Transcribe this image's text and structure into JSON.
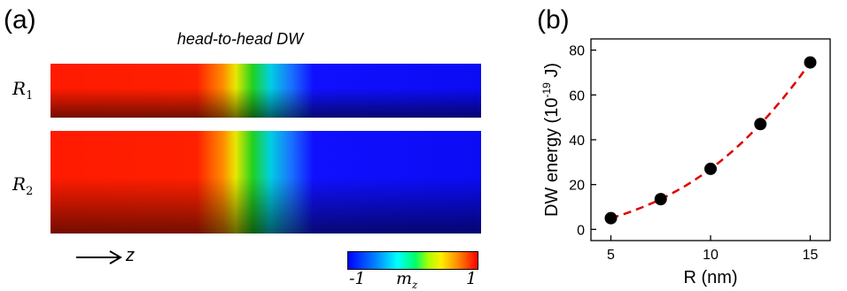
{
  "panel_a": {
    "label": "(a)",
    "title": "head-to-head DW",
    "wires": [
      {
        "label_main": "R",
        "label_sub": "1"
      },
      {
        "label_main": "R",
        "label_sub": "2"
      }
    ],
    "axis_label": "z",
    "colorbar": {
      "min": "-1",
      "max": "1",
      "label_main": "m",
      "label_sub": "z",
      "colors": [
        "#0000ff",
        "#00ffff",
        "#00ff00",
        "#ffff00",
        "#ff0000"
      ]
    }
  },
  "panel_b": {
    "label": "(b)"
  },
  "chart_data": {
    "type": "scatter",
    "x": [
      5,
      7.5,
      10,
      12.5,
      15
    ],
    "y": [
      5,
      13.5,
      27,
      47,
      74.5
    ],
    "xlabel": "R (nm)",
    "ylabel": "DW energy (10",
    "ylabel_sup": "-19",
    "ylabel_unit": " J)",
    "xlim": [
      4,
      16
    ],
    "ylim": [
      -5,
      85
    ],
    "xticks": [
      5,
      10,
      15
    ],
    "yticks": [
      0,
      20,
      40,
      60,
      80
    ],
    "marker_color": "#000000",
    "fit_color": "#e00000",
    "fit_curve_style": "dashed"
  }
}
